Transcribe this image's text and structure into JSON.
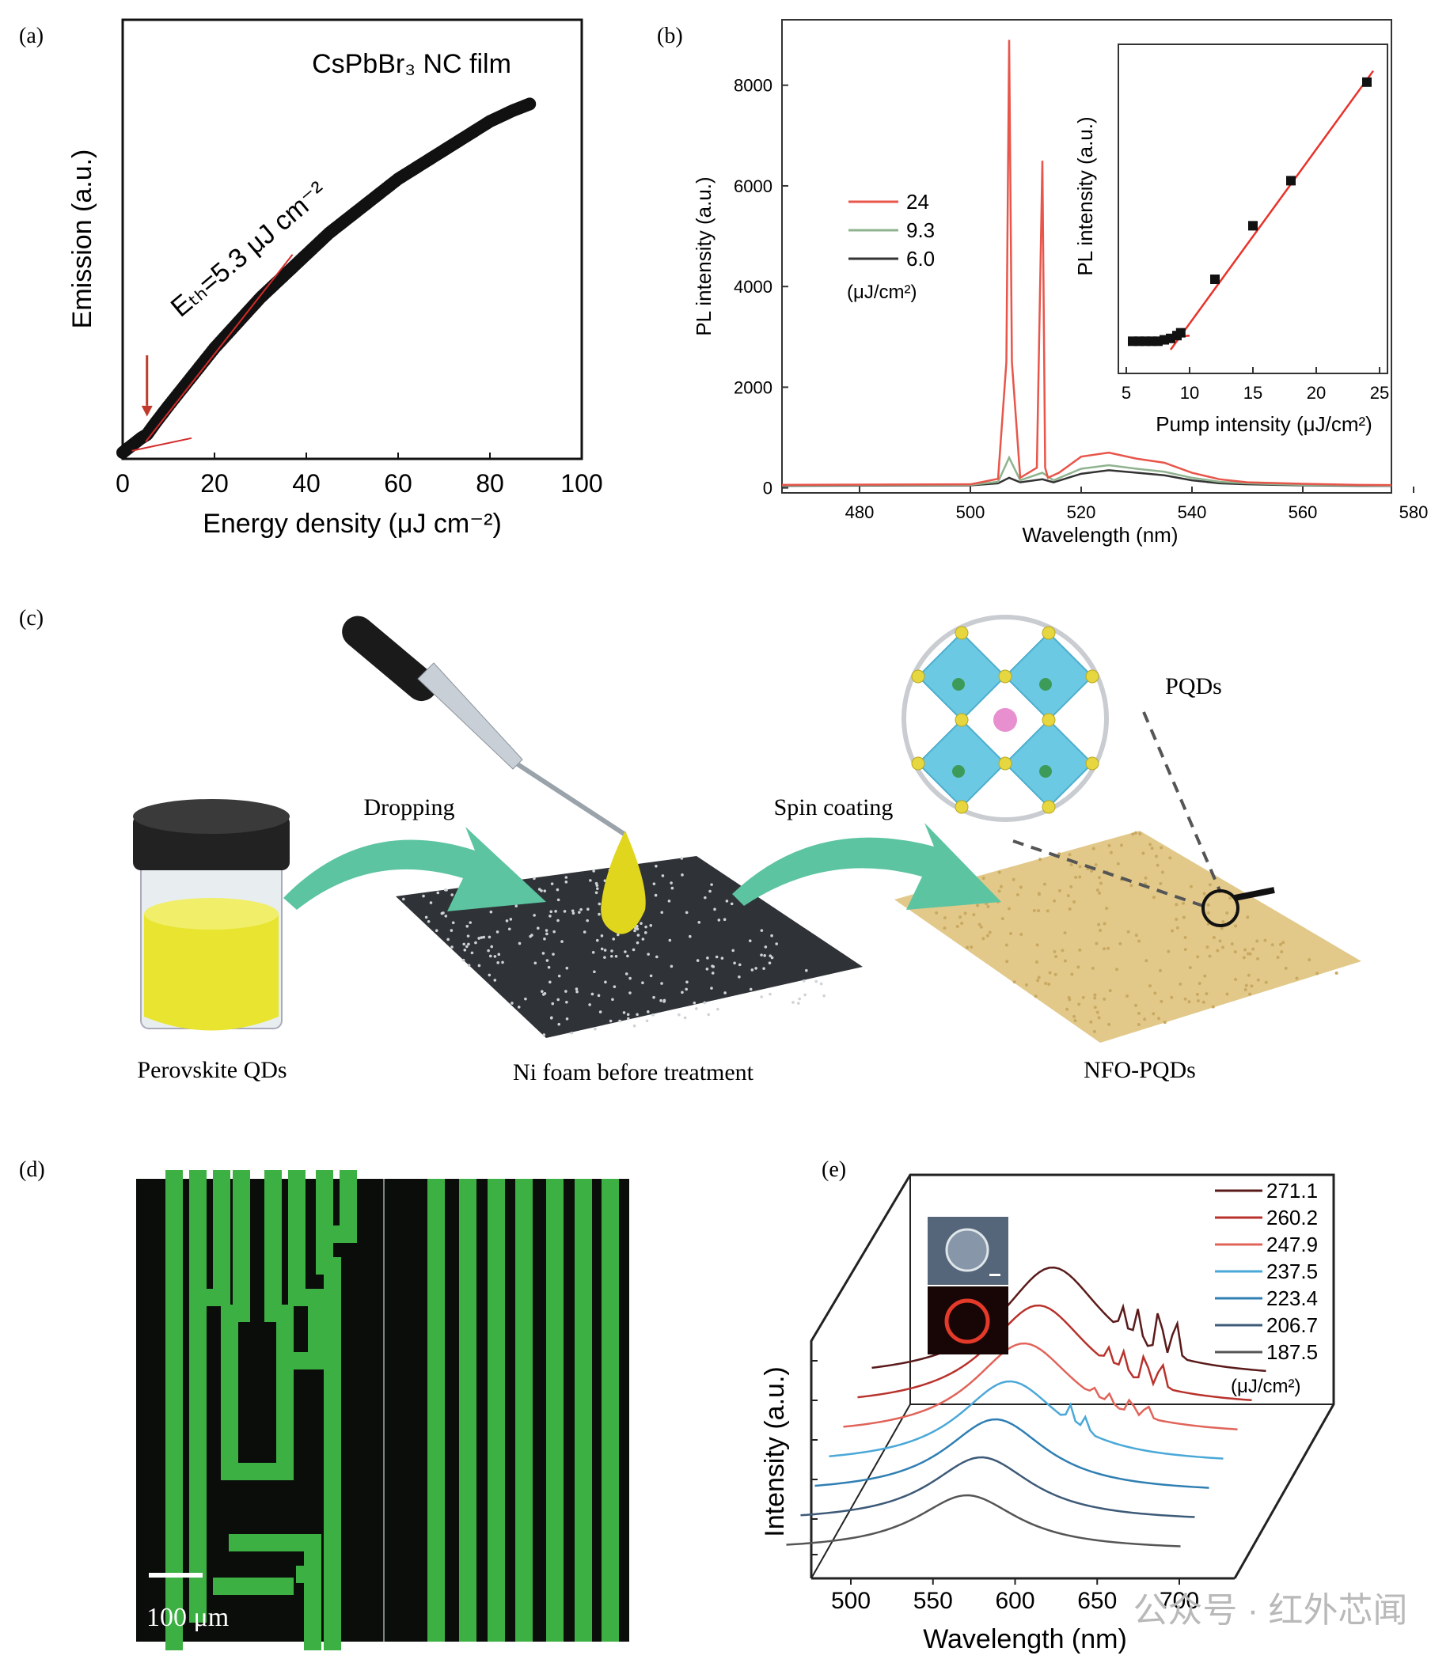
{
  "panels": {
    "a": {
      "letter": "(a)"
    },
    "b": {
      "letter": "(b)"
    },
    "c": {
      "letter": "(c)"
    },
    "d": {
      "letter": "(d)"
    },
    "e": {
      "letter": "(e)"
    }
  },
  "chart_data": [
    {
      "id": "a",
      "type": "scatter",
      "title": "CsPbBr₃ NC film",
      "xlabel": "Energy density (μJ cm⁻²)",
      "ylabel": "Emission (a.u.)",
      "xlim": [
        0,
        100
      ],
      "x_ticks": [
        "0",
        "20",
        "40",
        "60",
        "80",
        "100"
      ],
      "annotation": "Eₜₕ=5.3 μJ cm⁻²",
      "threshold_x": 5.3,
      "ylim": [
        0,
        1
      ],
      "series": [
        {
          "x": [
            0,
            2,
            4,
            5.3,
            7,
            10,
            15,
            20,
            25,
            30,
            35,
            40,
            45,
            50,
            55,
            60,
            65,
            70,
            75,
            80,
            85,
            89
          ],
          "y": [
            0,
            0.02,
            0.04,
            0.05,
            0.08,
            0.13,
            0.21,
            0.29,
            0.36,
            0.43,
            0.49,
            0.55,
            0.61,
            0.66,
            0.71,
            0.76,
            0.8,
            0.84,
            0.88,
            0.92,
            0.95,
            0.97
          ]
        }
      ],
      "colors": {
        "data": "#111111",
        "fit": "#d22b2b",
        "arrow": "#c0392b"
      }
    },
    {
      "id": "b",
      "type": "line",
      "xlabel": "Wavelength (nm)",
      "ylabel": "PL intensity (a.u.)",
      "xlim": [
        466,
        576
      ],
      "ylim": [
        -100,
        9300
      ],
      "x_ticks": [
        "480",
        "500",
        "520",
        "540",
        "560",
        "580"
      ],
      "y_ticks": [
        "0",
        "2000",
        "4000",
        "6000",
        "8000"
      ],
      "legend_unit": "(μJ/cm²)",
      "series": [
        {
          "name": "24",
          "color": "#e8554a",
          "x": [
            466,
            500,
            505,
            506.5,
            507,
            507.5,
            509,
            512,
            513,
            513.5,
            514,
            516,
            520,
            525,
            530,
            535,
            540,
            545,
            550,
            560,
            570,
            576
          ],
          "y": [
            60,
            70,
            180,
            2500,
            8900,
            2500,
            200,
            400,
            6500,
            400,
            200,
            300,
            620,
            700,
            580,
            500,
            300,
            170,
            110,
            80,
            60,
            55
          ]
        },
        {
          "name": "9.3",
          "color": "#8fb38f",
          "x": [
            466,
            500,
            505,
            507,
            509,
            513,
            515,
            520,
            525,
            530,
            535,
            540,
            545,
            550,
            560,
            570,
            576
          ],
          "y": [
            50,
            60,
            120,
            600,
            150,
            300,
            150,
            380,
            450,
            380,
            320,
            200,
            120,
            90,
            60,
            50,
            45
          ]
        },
        {
          "name": "6.0",
          "color": "#333333",
          "x": [
            466,
            500,
            505,
            507,
            509,
            513,
            515,
            520,
            525,
            530,
            535,
            540,
            545,
            550,
            560,
            570,
            576
          ],
          "y": [
            40,
            50,
            90,
            200,
            110,
            170,
            110,
            280,
            350,
            300,
            250,
            150,
            90,
            70,
            50,
            40,
            40
          ]
        }
      ],
      "inset": {
        "xlabel": "Pump intensity (μJ/cm²)",
        "ylabel": "PL intensity (a.u.)",
        "xlim": [
          5,
          25
        ],
        "x_ticks": [
          "5",
          "10",
          "15",
          "20",
          "25"
        ],
        "ylim": [
          0,
          1
        ],
        "points_x": [
          5.5,
          6.0,
          6.5,
          7.0,
          7.5,
          8.0,
          8.5,
          9.0,
          9.3,
          12,
          15,
          18,
          24
        ],
        "points_y": [
          0.03,
          0.03,
          0.03,
          0.03,
          0.03,
          0.035,
          0.04,
          0.05,
          0.06,
          0.25,
          0.44,
          0.6,
          0.95
        ],
        "fit_color": "#e8332a"
      }
    },
    {
      "id": "e",
      "type": "line",
      "xlabel": "Wavelength (nm)",
      "ylabel": "Intensity (a.u.)",
      "x_ticks": [
        "500",
        "550",
        "600",
        "650",
        "700"
      ],
      "legend_unit": "(μJ/cm²)",
      "series": [
        {
          "name": "271.1",
          "color": "#5a1a1a"
        },
        {
          "name": "260.2",
          "color": "#b8322c"
        },
        {
          "name": "247.9",
          "color": "#e0645a"
        },
        {
          "name": "237.5",
          "color": "#4aa8d8"
        },
        {
          "name": "223.4",
          "color": "#2f7fb3"
        },
        {
          "name": "206.7",
          "color": "#3d5a78"
        },
        {
          "name": "187.5",
          "color": "#555555"
        }
      ]
    }
  ],
  "figure_c": {
    "labels": {
      "vial": "Perovskite QDs",
      "foam": "Ni foam before treatment",
      "coated": "NFO-PQDs",
      "step1": "Dropping",
      "step2": "Spin coating",
      "zoom": "PQDs"
    },
    "colors": {
      "arrow": "#5cc4a0",
      "liquid": "#e8e430",
      "foam": "#2f3236",
      "coated": "#e2c98a",
      "octahedra": "#5cc4e0",
      "atom": "#e6d640",
      "center_atom": "#e88fcf"
    }
  },
  "figure_d": {
    "scale_label": "100 μm",
    "colors": {
      "line": "#3cb043",
      "background": "#0b0d0b"
    }
  },
  "watermark": "公众号 · 红外芯闻"
}
